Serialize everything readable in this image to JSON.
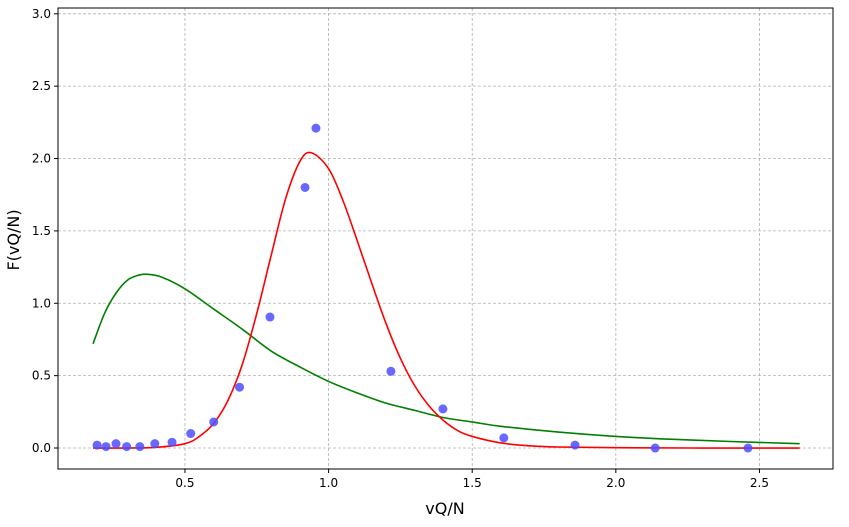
{
  "chart_data": {
    "type": "scatter",
    "title": "",
    "xlabel": "vQ/N",
    "ylabel": "F(vQ/N)",
    "xlim": [
      0.058,
      2.756
    ],
    "ylim": [
      -0.145,
      3.04
    ],
    "grid": true,
    "legend": null,
    "x_ticks": [
      0.5,
      1.0,
      1.5,
      2.0,
      2.5
    ],
    "x_tick_labels": [
      "0.5",
      "1.0",
      "1.5",
      "2.0",
      "2.5"
    ],
    "y_ticks": [
      0.0,
      0.5,
      1.0,
      1.5,
      2.0,
      2.5,
      3.0
    ],
    "y_tick_labels": [
      "0.0",
      "0.5",
      "1.0",
      "1.5",
      "2.0",
      "2.5",
      "3.0"
    ],
    "series": [
      {
        "name": "data",
        "kind": "scatter",
        "color": "#4d4dff",
        "x": [
          0.194,
          0.225,
          0.26,
          0.297,
          0.343,
          0.395,
          0.455,
          0.52,
          0.6,
          0.69,
          0.796,
          0.918,
          0.956,
          1.217,
          1.398,
          1.61,
          1.858,
          2.137,
          2.46
        ],
        "y": [
          0.02,
          0.01,
          0.03,
          0.01,
          0.01,
          0.03,
          0.04,
          0.1,
          0.18,
          0.42,
          0.905,
          1.8,
          2.21,
          0.53,
          0.27,
          0.07,
          0.02,
          0.0,
          0.0
        ]
      },
      {
        "name": "fit-red",
        "kind": "line",
        "color": "#ff0000",
        "description": "peaked fit, maximum ~2.04 at x~0.94",
        "x": [
          0.18,
          0.3,
          0.4,
          0.5,
          0.55,
          0.6,
          0.65,
          0.7,
          0.75,
          0.8,
          0.85,
          0.9,
          0.94,
          1.0,
          1.05,
          1.1,
          1.15,
          1.2,
          1.25,
          1.3,
          1.35,
          1.4,
          1.45,
          1.5,
          1.6,
          1.7,
          1.8,
          2.0,
          2.3,
          2.64
        ],
        "y": [
          0.0,
          0.0,
          0.005,
          0.03,
          0.08,
          0.17,
          0.33,
          0.58,
          0.93,
          1.33,
          1.72,
          1.98,
          2.04,
          1.93,
          1.71,
          1.43,
          1.14,
          0.86,
          0.62,
          0.43,
          0.29,
          0.19,
          0.12,
          0.08,
          0.035,
          0.015,
          0.007,
          0.002,
          0.0,
          0.0
        ]
      },
      {
        "name": "fit-green",
        "kind": "line",
        "color": "#008000",
        "description": "broad fit, maximum ~1.20 at x~0.37",
        "x": [
          0.18,
          0.22,
          0.26,
          0.3,
          0.34,
          0.37,
          0.42,
          0.5,
          0.6,
          0.7,
          0.8,
          0.9,
          1.0,
          1.1,
          1.2,
          1.3,
          1.4,
          1.5,
          1.6,
          1.8,
          2.0,
          2.2,
          2.4,
          2.64
        ],
        "y": [
          0.72,
          0.93,
          1.07,
          1.16,
          1.195,
          1.2,
          1.18,
          1.1,
          0.96,
          0.82,
          0.67,
          0.56,
          0.46,
          0.38,
          0.31,
          0.26,
          0.21,
          0.18,
          0.15,
          0.11,
          0.08,
          0.06,
          0.045,
          0.03
        ]
      }
    ]
  }
}
